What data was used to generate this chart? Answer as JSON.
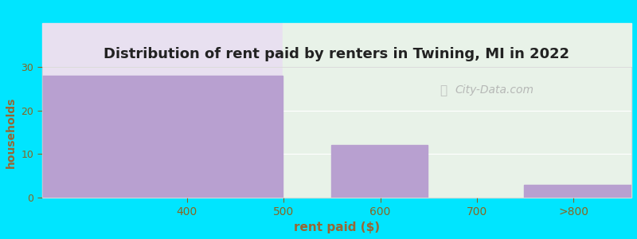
{
  "title": "Distribution of rent paid by renters in Twining, MI in 2022",
  "xlabel": "rent paid ($)",
  "ylabel": "households",
  "tick_positions": [
    400,
    500,
    600,
    700,
    800
  ],
  "tick_labels": [
    "400",
    "500",
    "600",
    "700",
    ">800"
  ],
  "bars": [
    {
      "x_left": 250,
      "x_right": 499,
      "value": 28
    },
    {
      "x_left": 499,
      "x_right": 549,
      "value": 0
    },
    {
      "x_left": 549,
      "x_right": 649,
      "value": 12
    },
    {
      "x_left": 649,
      "x_right": 749,
      "value": 0
    },
    {
      "x_left": 749,
      "x_right": 860,
      "value": 3
    }
  ],
  "bar_color": "#b8a0d0",
  "bg_color": "#00e5ff",
  "plot_bg_left": "#e8e0f0",
  "plot_bg_right": "#e8f2e8",
  "split_x": 499,
  "xlim_left": 250,
  "xlim_right": 860,
  "ylim": [
    0,
    30
  ],
  "yticks": [
    0,
    10,
    20,
    30
  ],
  "title_color": "#222222",
  "label_color": "#996633",
  "tick_color": "#886622",
  "watermark": "City-Data.com",
  "grid_color": "#ffffff"
}
